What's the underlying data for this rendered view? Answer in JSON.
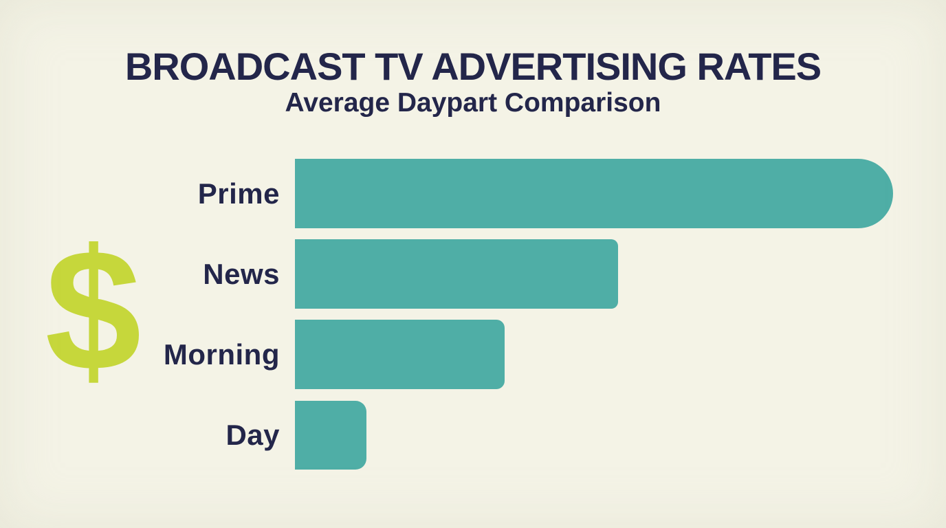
{
  "header": {
    "title": "BROADCAST TV ADVERTISING RATES",
    "subtitle": "Average Daypart Comparison"
  },
  "icons": {
    "dollar_glyph": "$"
  },
  "colors": {
    "background": "#f4f3e6",
    "bar_teal": "#4faea6",
    "dollar_lime": "#c6d73b",
    "text_navy": "#23264a"
  },
  "chart_data": {
    "type": "bar",
    "orientation": "horizontal",
    "title": "BROADCAST TV ADVERTISING RATES",
    "subtitle": "Average Daypart Comparison",
    "categories": [
      "Prime",
      "News",
      "Morning",
      "Day"
    ],
    "values": [
      100,
      54,
      35,
      12
    ],
    "value_scale": "relative, no numeric axis or data labels shown",
    "bar_color": "#4faea6",
    "grid": false,
    "legend": false,
    "labels_position": "left of bars, right-aligned"
  }
}
